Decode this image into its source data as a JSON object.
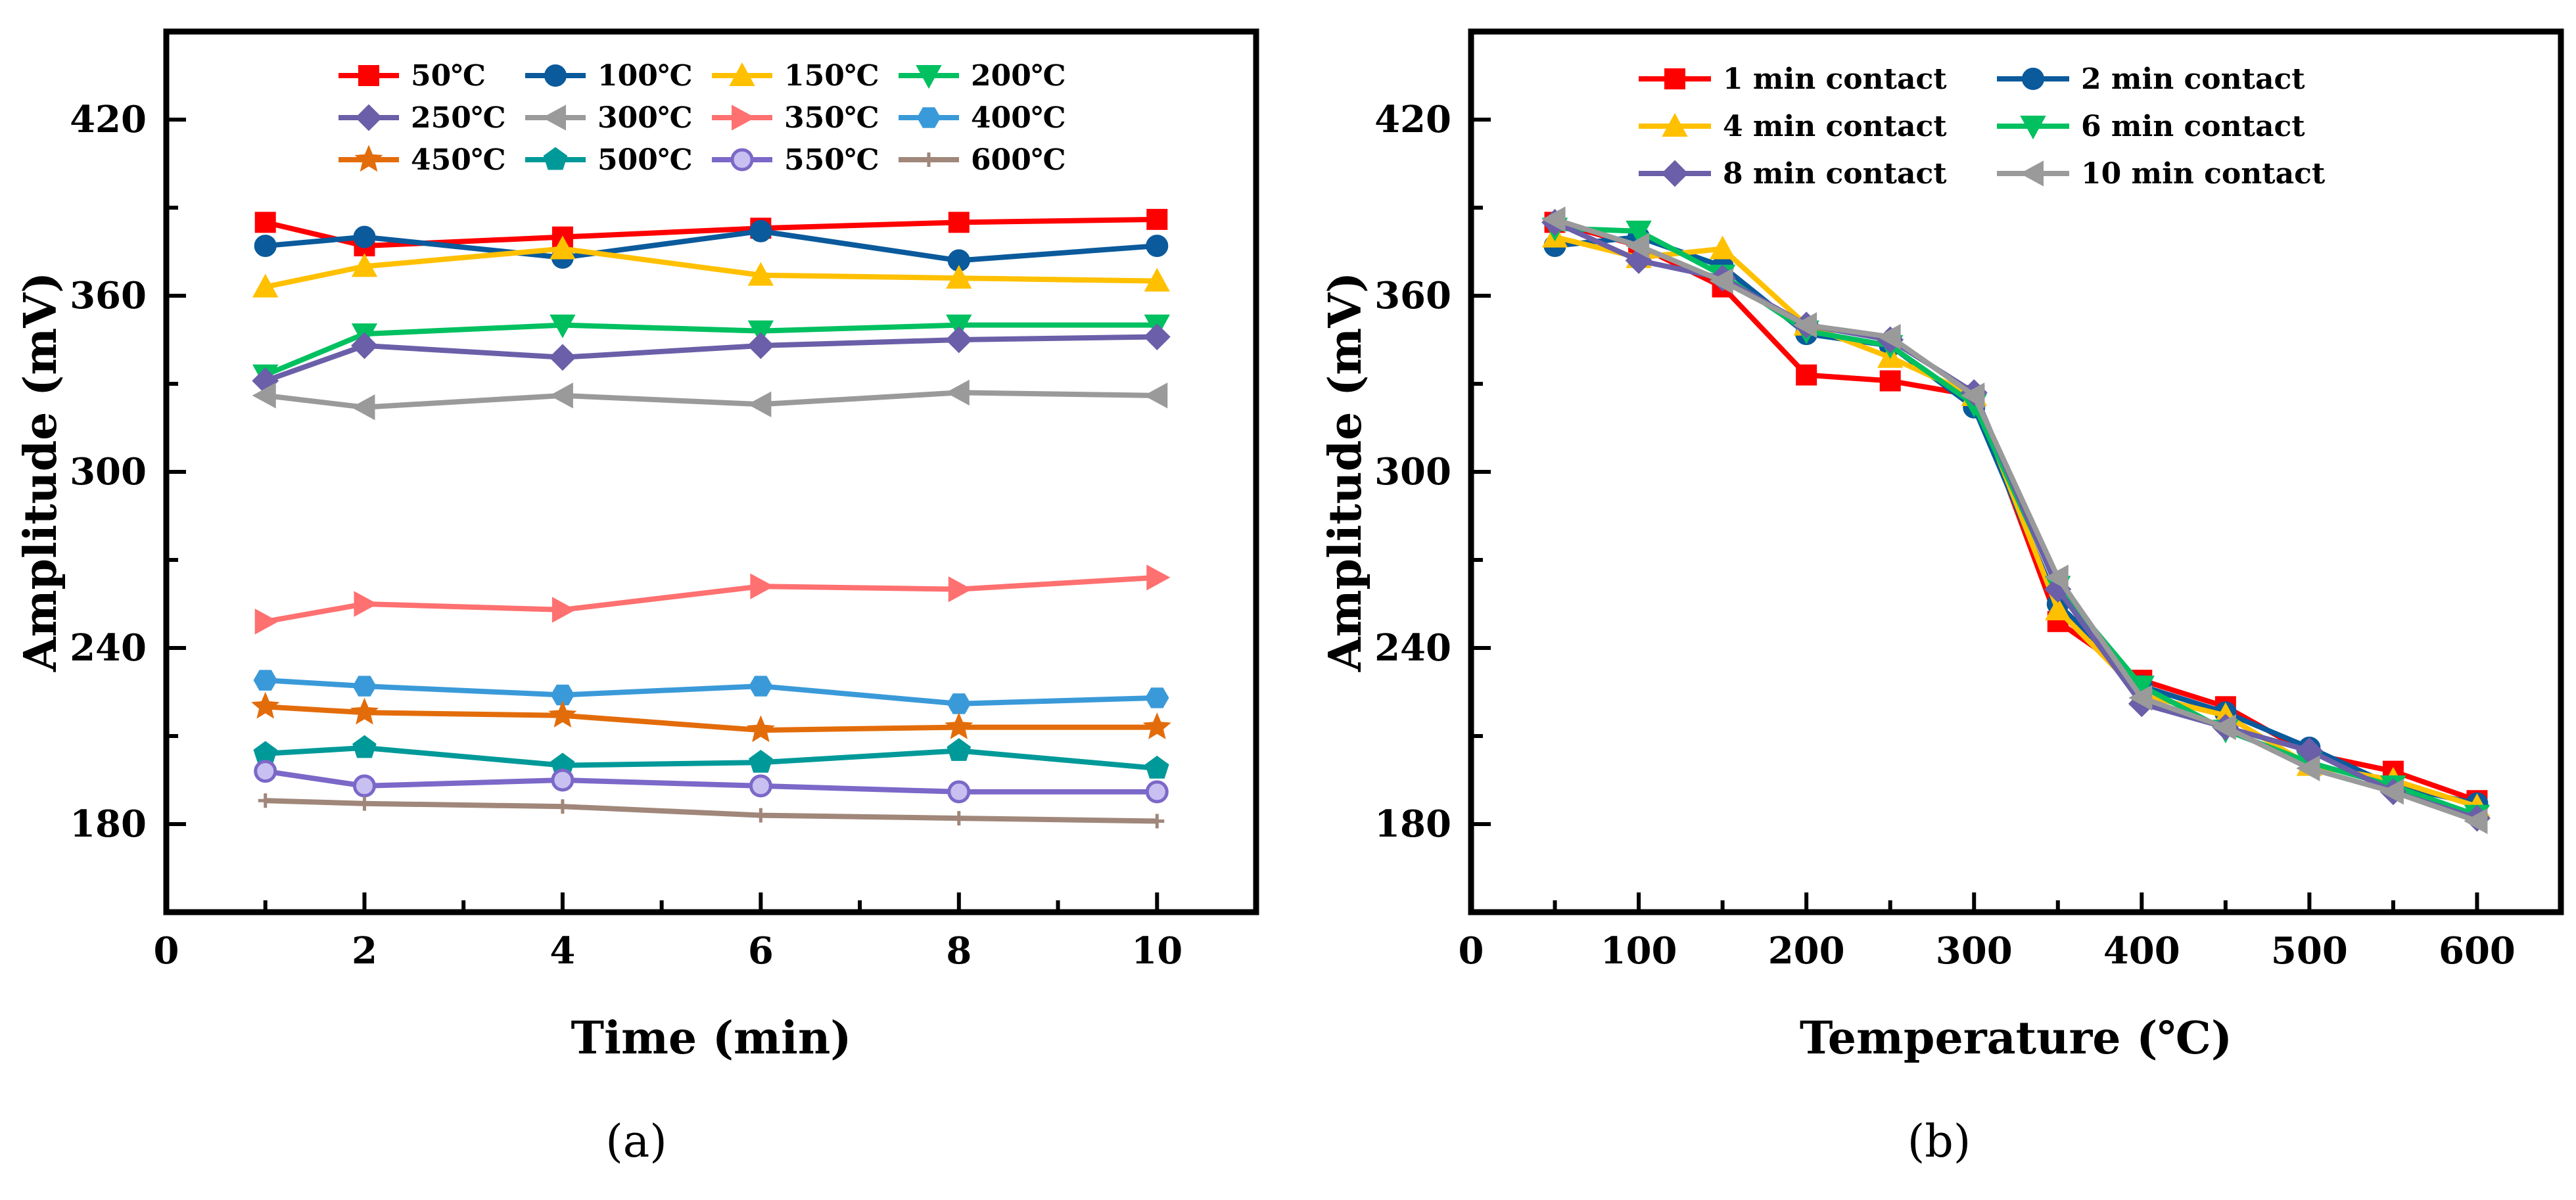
{
  "chart_data": [
    {
      "type": "line",
      "panel_label": "(a)",
      "xlabel": "Time (min)",
      "ylabel": "Amplitude (mV)",
      "xlim": [
        0,
        11
      ],
      "ylim": [
        150,
        450
      ],
      "xticks": [
        0,
        2,
        4,
        6,
        8,
        10
      ],
      "yticks": [
        180,
        240,
        300,
        360,
        420
      ],
      "grid": false,
      "legend_position": "top",
      "x": [
        1,
        2,
        4,
        6,
        8,
        10
      ],
      "series": [
        {
          "name": "50℃",
          "color": "#ff0000",
          "marker": "square",
          "values": [
            385,
            377,
            380,
            383,
            385,
            386
          ]
        },
        {
          "name": "100℃",
          "color": "#0a5a9c",
          "marker": "circle",
          "values": [
            377,
            380,
            373,
            382,
            372,
            377
          ]
        },
        {
          "name": "150℃",
          "color": "#ffc000",
          "marker": "triangle-up",
          "values": [
            363,
            370,
            376,
            367,
            366,
            365
          ]
        },
        {
          "name": "200℃",
          "color": "#00c060",
          "marker": "triangle-down",
          "values": [
            333,
            347,
            350,
            348,
            350,
            350
          ]
        },
        {
          "name": "250℃",
          "color": "#6a5fa8",
          "marker": "diamond",
          "values": [
            331,
            343,
            339,
            343,
            345,
            346
          ]
        },
        {
          "name": "300℃",
          "color": "#9a9a9a",
          "marker": "triangle-left",
          "values": [
            326,
            322,
            326,
            323,
            327,
            326
          ]
        },
        {
          "name": "350℃",
          "color": "#ff7070",
          "marker": "triangle-right",
          "values": [
            249,
            255,
            253,
            261,
            260,
            264
          ]
        },
        {
          "name": "400℃",
          "color": "#3a9ad9",
          "marker": "hexagon",
          "values": [
            229,
            227,
            224,
            227,
            221,
            223
          ]
        },
        {
          "name": "450℃",
          "color": "#e36c0a",
          "marker": "star",
          "values": [
            220,
            218,
            217,
            212,
            213,
            213
          ]
        },
        {
          "name": "500℃",
          "color": "#009999",
          "marker": "pentagon",
          "values": [
            204,
            206,
            200,
            201,
            205,
            199
          ]
        },
        {
          "name": "550℃",
          "color": "#7b68c8",
          "marker": "circle-open",
          "values": [
            198,
            193,
            195,
            193,
            191,
            191
          ]
        },
        {
          "name": "600℃",
          "color": "#a0877a",
          "marker": "plus",
          "values": [
            188,
            187,
            186,
            183,
            182,
            181
          ]
        }
      ]
    },
    {
      "type": "line",
      "panel_label": "(b)",
      "xlabel": "Temperature (℃)",
      "ylabel": "Amplitude (mV)",
      "xlim": [
        0,
        650
      ],
      "ylim": [
        150,
        450
      ],
      "xticks": [
        0,
        100,
        200,
        300,
        400,
        500,
        600
      ],
      "yticks": [
        180,
        240,
        300,
        360,
        420
      ],
      "grid": false,
      "legend_position": "top",
      "x": [
        50,
        100,
        150,
        200,
        250,
        300,
        350,
        400,
        450,
        500,
        550,
        600
      ],
      "series": [
        {
          "name": "1 min contact",
          "color": "#ff0000",
          "marker": "square",
          "values": [
            385,
            377,
            363,
            333,
            331,
            326,
            249,
            229,
            220,
            204,
            198,
            188
          ]
        },
        {
          "name": "2 min contact",
          "color": "#0a5a9c",
          "marker": "circle",
          "values": [
            377,
            380,
            370,
            347,
            343,
            322,
            255,
            227,
            218,
            206,
            193,
            187
          ]
        },
        {
          "name": "4 min contact",
          "color": "#ffc000",
          "marker": "triangle-up",
          "values": [
            380,
            373,
            376,
            350,
            339,
            326,
            253,
            224,
            217,
            200,
            195,
            186
          ]
        },
        {
          "name": "6 min contact",
          "color": "#00c060",
          "marker": "triangle-down",
          "values": [
            383,
            382,
            367,
            348,
            343,
            323,
            261,
            227,
            212,
            201,
            193,
            183
          ]
        },
        {
          "name": "8 min contact",
          "color": "#6a5fa8",
          "marker": "diamond",
          "values": [
            385,
            372,
            366,
            350,
            345,
            327,
            260,
            221,
            213,
            205,
            191,
            182
          ]
        },
        {
          "name": "10 min contact",
          "color": "#9a9a9a",
          "marker": "triangle-left",
          "values": [
            386,
            377,
            365,
            350,
            346,
            326,
            264,
            223,
            213,
            199,
            191,
            181
          ]
        }
      ]
    }
  ]
}
